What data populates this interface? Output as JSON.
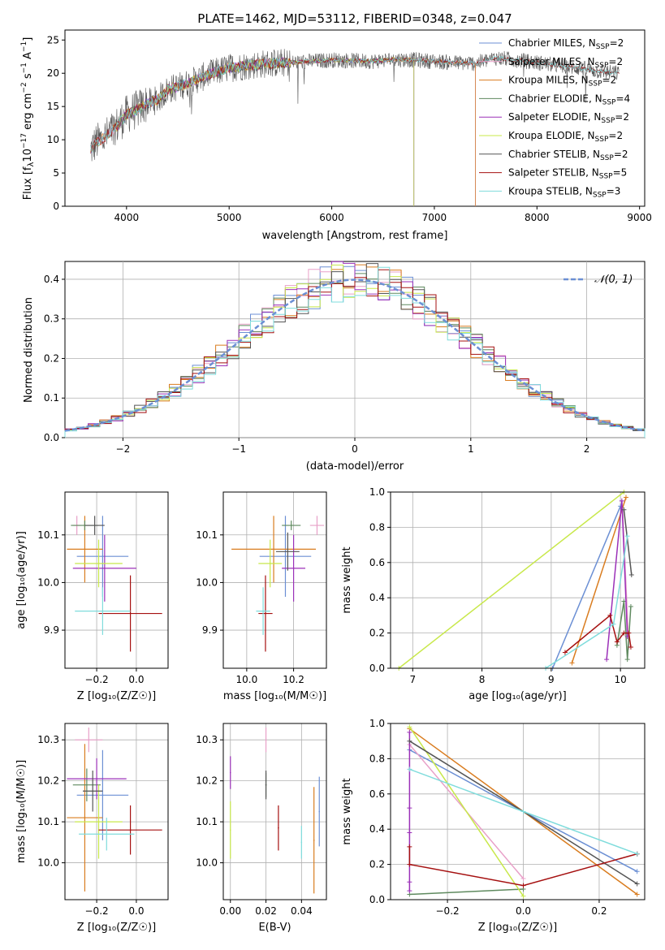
{
  "figure": {
    "title": "PLATE=1462, MJD=53112, FIBERID=0348, z=0.047"
  },
  "colors": {
    "Chabrier MILES": "#6b8fd4",
    "Salpeter MILES": "#e8a0c8",
    "Kroupa MILES": "#d97c1f",
    "Chabrier ELODIE": "#5f8a5f",
    "Salpeter ELODIE": "#9b30b8",
    "Kroupa ELODIE": "#c8e84a",
    "Chabrier STELIB": "#555555",
    "Salpeter STELIB": "#a51010",
    "Kroupa STELIB": "#7fdcdc"
  },
  "chart_data": [
    {
      "type": "line",
      "id": "spectrum",
      "title": "PLATE=1462, MJD=53112, FIBERID=0348, z=0.047",
      "xlabel": "wavelength [Angstrom, rest frame]",
      "ylabel": "Flux [fλ10^-17 erg cm^-2 s^-1 A^-1]",
      "xlim": [
        3400,
        9050
      ],
      "ylim": [
        0,
        26.5
      ],
      "xticks": [
        4000,
        5000,
        6000,
        7000,
        8000,
        9000
      ],
      "yticks": [
        0,
        5,
        10,
        15,
        20,
        25
      ],
      "legend": "upper-right",
      "legend_entries": [
        "Chabrier MILES, N_SSP=2",
        "Salpeter MILES, N_SSP=2",
        "Kroupa MILES, N_SSP=2",
        "Chabrier ELODIE, N_SSP=4",
        "Salpeter ELODIE, N_SSP=2",
        "Kroupa ELODIE, N_SSP=2",
        "Chabrier STELIB, N_SSP=2",
        "Salpeter STELIB, N_SSP=5",
        "Kroupa STELIB, N_SSP=3"
      ],
      "continuum": {
        "x": [
          3650,
          3700,
          3800,
          3900,
          4000,
          4100,
          4200,
          4300,
          4400,
          4600,
          4800,
          5000,
          5200,
          5400,
          5600,
          5800,
          6000,
          6200,
          6400,
          6600,
          6800,
          7000,
          7200,
          7400,
          7600,
          7800,
          8000,
          8200,
          8400,
          8600,
          8800
        ],
        "y": [
          8.5,
          9.5,
          10.5,
          12.0,
          13.8,
          14.5,
          15.5,
          16.0,
          17.5,
          18.5,
          19.8,
          20.8,
          21.2,
          21.5,
          21.6,
          21.8,
          22.0,
          21.9,
          21.8,
          22.1,
          22.0,
          21.8,
          21.6,
          21.5,
          22.3,
          22.0,
          21.6,
          21.2,
          20.8,
          20.3,
          20.0
        ]
      },
      "model_ranges": {
        "MILES": [
          3650,
          7400
        ],
        "ELODIE": [
          3900,
          6800
        ],
        "STELIB": [
          3650,
          8800
        ]
      }
    },
    {
      "type": "bar",
      "id": "residual-histogram",
      "xlabel": "(data-model)/error",
      "ylabel": "Normed distribution",
      "xlim": [
        -2.5,
        2.5
      ],
      "ylim": [
        0,
        0.445
      ],
      "xticks": [
        -2,
        -1,
        0,
        1,
        2
      ],
      "yticks": [
        0.0,
        0.1,
        0.2,
        0.3,
        0.4
      ],
      "legend": "upper-right",
      "reference_curve": "N(0,1)",
      "bin_width": 0.1,
      "bin_start": -2.5
    },
    {
      "type": "scatter",
      "id": "age-vs-Z",
      "xlabel": "Z [log10(Z/Z⊙)]",
      "ylabel": "age [log10(age/yr)]",
      "xlim": [
        -0.36,
        0.16
      ],
      "ylim": [
        9.82,
        10.19
      ],
      "xticks": [
        -0.2,
        0.0
      ],
      "yticks": [
        9.9,
        10.0,
        10.1
      ],
      "points": [
        {
          "model": "Chabrier MILES",
          "x": -0.17,
          "xerr": 0.13,
          "y": 10.055,
          "yerr": 0.085
        },
        {
          "model": "Salpeter MILES",
          "x": -0.3,
          "xerr": 0.02,
          "y": 10.12,
          "yerr": 0.02
        },
        {
          "model": "Kroupa MILES",
          "x": -0.26,
          "xerr": 0.09,
          "y": 10.07,
          "yerr": 0.07
        },
        {
          "model": "Chabrier ELODIE",
          "x": -0.26,
          "xerr": 0.07,
          "y": 10.12,
          "yerr": 0.01
        },
        {
          "model": "Salpeter ELODIE",
          "x": -0.16,
          "xerr": 0.16,
          "y": 10.03,
          "yerr": 0.07
        },
        {
          "model": "Kroupa ELODIE",
          "x": -0.19,
          "xerr": 0.12,
          "y": 10.04,
          "yerr": 0.05
        },
        {
          "model": "Chabrier STELIB",
          "x": -0.21,
          "xerr": 0.05,
          "y": 10.12,
          "yerr": 0.02
        },
        {
          "model": "Salpeter STELIB",
          "x": -0.03,
          "xerr": 0.16,
          "y": 9.935,
          "yerr": 0.08
        },
        {
          "model": "Kroupa STELIB",
          "x": -0.17,
          "xerr": 0.14,
          "y": 9.94,
          "yerr": 0.05
        }
      ]
    },
    {
      "type": "scatter",
      "id": "age-vs-mass",
      "xlabel": "mass [log10(M/M⊙)]",
      "ylabel": "",
      "xlim": [
        9.9,
        10.34
      ],
      "ylim": [
        9.82,
        10.19
      ],
      "xticks": [
        10.0,
        10.2
      ],
      "yticks": [
        9.9,
        10.0,
        10.1
      ],
      "points": [
        {
          "model": "Chabrier MILES",
          "x": 10.165,
          "xerr": 0.11,
          "y": 10.055,
          "yerr": 0.085
        },
        {
          "model": "Salpeter MILES",
          "x": 10.3,
          "xerr": 0.03,
          "y": 10.12,
          "yerr": 0.02
        },
        {
          "model": "Kroupa MILES",
          "x": 10.115,
          "xerr": 0.18,
          "y": 10.07,
          "yerr": 0.07
        },
        {
          "model": "Chabrier ELODIE",
          "x": 10.19,
          "xerr": 0.04,
          "y": 10.12,
          "yerr": 0.01
        },
        {
          "model": "Salpeter ELODIE",
          "x": 10.2,
          "xerr": 0.05,
          "y": 10.03,
          "yerr": 0.07
        },
        {
          "model": "Kroupa ELODIE",
          "x": 10.1,
          "xerr": 0.05,
          "y": 10.04,
          "yerr": 0.05
        },
        {
          "model": "Chabrier STELIB",
          "x": 10.175,
          "xerr": 0.05,
          "y": 10.065,
          "yerr": 0.04
        },
        {
          "model": "Salpeter STELIB",
          "x": 10.08,
          "xerr": 0.03,
          "y": 9.935,
          "yerr": 0.08
        },
        {
          "model": "Kroupa STELIB",
          "x": 10.07,
          "xerr": 0.03,
          "y": 9.94,
          "yerr": 0.05
        }
      ]
    },
    {
      "type": "line",
      "id": "mass-weight-vs-age",
      "xlabel": "age [log10(age/yr)]",
      "ylabel": "mass weight",
      "xlim": [
        6.68,
        10.35
      ],
      "ylim": [
        0,
        1.0
      ],
      "xticks": [
        7,
        8,
        9,
        10
      ],
      "yticks": [
        0.0,
        0.2,
        0.4,
        0.6,
        0.8,
        1.0
      ],
      "series": [
        {
          "model": "Chabrier MILES",
          "x": [
            9.02,
            10.0
          ],
          "y": [
            0.0,
            0.92
          ]
        },
        {
          "model": "Salpeter MILES",
          "x": [
            10.03,
            10.12
          ],
          "y": [
            0.9,
            0.12
          ]
        },
        {
          "model": "Kroupa MILES",
          "x": [
            9.3,
            10.08
          ],
          "y": [
            0.03,
            0.97
          ]
        },
        {
          "model": "Chabrier ELODIE",
          "x": [
            9.95,
            10.05,
            10.1,
            10.15
          ],
          "y": [
            0.13,
            0.38,
            0.05,
            0.35
          ]
        },
        {
          "model": "Salpeter ELODIE",
          "x": [
            9.8,
            10.02,
            10.1
          ],
          "y": [
            0.05,
            0.95,
            0.18
          ]
        },
        {
          "model": "Kroupa ELODIE",
          "x": [
            6.8,
            10.05
          ],
          "y": [
            0.0,
            1.0
          ]
        },
        {
          "model": "Chabrier STELIB",
          "x": [
            10.05,
            10.16
          ],
          "y": [
            0.9,
            0.53
          ]
        },
        {
          "model": "Salpeter STELIB",
          "x": [
            9.2,
            9.85,
            9.95,
            10.05,
            10.12,
            10.15
          ],
          "y": [
            0.09,
            0.3,
            0.15,
            0.2,
            0.2,
            0.12
          ]
        },
        {
          "model": "Kroupa STELIB",
          "x": [
            8.92,
            9.9,
            10.1
          ],
          "y": [
            0.0,
            0.25,
            0.75
          ]
        }
      ]
    },
    {
      "type": "scatter",
      "id": "mass-vs-Z",
      "xlabel": "Z [log10(Z/Z⊙)]",
      "ylabel": "mass [log10(M/M⊙)]",
      "xlim": [
        -0.36,
        0.16
      ],
      "ylim": [
        9.91,
        10.34
      ],
      "xticks": [
        -0.2,
        0.0
      ],
      "yticks": [
        10.0,
        10.1,
        10.2,
        10.3
      ],
      "points": [
        {
          "model": "Chabrier MILES",
          "x": -0.17,
          "xerr": 0.13,
          "y": 10.165,
          "yerr": 0.11
        },
        {
          "model": "Salpeter MILES",
          "x": -0.24,
          "xerr": 0.07,
          "y": 10.3,
          "yerr": 0.03
        },
        {
          "model": "Kroupa MILES",
          "x": -0.26,
          "xerr": 0.09,
          "y": 10.11,
          "yerr": 0.18
        },
        {
          "model": "Chabrier ELODIE",
          "x": -0.25,
          "xerr": 0.07,
          "y": 10.19,
          "yerr": 0.04
        },
        {
          "model": "Salpeter ELODIE",
          "x": -0.2,
          "xerr": 0.15,
          "y": 10.205,
          "yerr": 0.05
        },
        {
          "model": "Kroupa ELODIE",
          "x": -0.19,
          "xerr": 0.12,
          "y": 10.1,
          "yerr": 0.09
        },
        {
          "model": "Chabrier STELIB",
          "x": -0.22,
          "xerr": 0.05,
          "y": 10.175,
          "yerr": 0.05
        },
        {
          "model": "Salpeter STELIB",
          "x": -0.03,
          "xerr": 0.16,
          "y": 10.08,
          "yerr": 0.06
        },
        {
          "model": "Kroupa STELIB",
          "x": -0.15,
          "xerr": 0.14,
          "y": 10.07,
          "yerr": 0.04
        }
      ]
    },
    {
      "type": "scatter",
      "id": "mass-vs-ebv",
      "xlabel": "E(B-V)",
      "ylabel": "",
      "xlim": [
        -0.004,
        0.054
      ],
      "ylim": [
        9.91,
        10.34
      ],
      "xticks": [
        0.0,
        0.02,
        0.04
      ],
      "yticks": [
        10.0,
        10.1,
        10.2,
        10.3
      ],
      "points": [
        {
          "model": "Chabrier MILES",
          "x": 0.05,
          "y": 10.125,
          "yerr": 0.085
        },
        {
          "model": "Salpeter MILES",
          "x": 0.02,
          "y": 10.3,
          "yerr": 0.03
        },
        {
          "model": "Kroupa MILES",
          "x": 0.047,
          "y": 10.055,
          "yerr": 0.13
        },
        {
          "model": "Chabrier ELODIE",
          "x": 0.02,
          "y": 10.19,
          "yerr": 0.03
        },
        {
          "model": "Salpeter ELODIE",
          "x": 0.0,
          "y": 10.22,
          "yerr": 0.04
        },
        {
          "model": "Kroupa ELODIE",
          "x": 0.0,
          "y": 10.08,
          "yerr": 0.07
        },
        {
          "model": "Chabrier STELIB",
          "x": 0.02,
          "y": 10.19,
          "yerr": 0.035
        },
        {
          "model": "Salpeter STELIB",
          "x": 0.027,
          "y": 10.085,
          "yerr": 0.055
        },
        {
          "model": "Kroupa STELIB",
          "x": 0.04,
          "y": 10.05,
          "yerr": 0.04
        }
      ]
    },
    {
      "type": "line",
      "id": "mass-weight-vs-Z",
      "xlabel": "Z [log10(Z/Z⊙)]",
      "ylabel": "mass weight",
      "xlim": [
        -0.35,
        0.32
      ],
      "ylim": [
        0,
        1.0
      ],
      "xticks": [
        -0.2,
        0.0,
        0.2
      ],
      "yticks": [
        0.0,
        0.2,
        0.4,
        0.6,
        0.8,
        1.0
      ],
      "series": [
        {
          "model": "Chabrier MILES",
          "x": [
            -0.3,
            0.0,
            0.3
          ],
          "y": [
            0.85,
            0.5,
            0.16
          ]
        },
        {
          "model": "Salpeter MILES",
          "x": [
            -0.3,
            0.0
          ],
          "y": [
            0.88,
            0.12
          ]
        },
        {
          "model": "Kroupa MILES",
          "x": [
            -0.3,
            0.0,
            0.3
          ],
          "y": [
            0.97,
            0.5,
            0.03
          ]
        },
        {
          "model": "Chabrier ELODIE",
          "x": [
            -0.3,
            0.0
          ],
          "y": [
            0.03,
            0.06
          ]
        },
        {
          "model": "Salpeter ELODIE",
          "x": [
            -0.3,
            -0.3,
            -0.3,
            -0.3,
            -0.3
          ],
          "y": [
            0.95,
            0.52,
            0.38,
            0.1,
            0.05
          ]
        },
        {
          "model": "Kroupa ELODIE",
          "x": [
            -0.3,
            0.0
          ],
          "y": [
            0.98,
            0.02
          ]
        },
        {
          "model": "Chabrier STELIB",
          "x": [
            -0.3,
            0.0,
            0.3
          ],
          "y": [
            0.9,
            0.5,
            0.09
          ]
        },
        {
          "model": "Salpeter STELIB",
          "x": [
            -0.3,
            -0.3,
            0.0,
            0.3,
            0.3
          ],
          "y": [
            0.3,
            0.2,
            0.08,
            0.26,
            0.26
          ]
        },
        {
          "model": "Kroupa STELIB",
          "x": [
            -0.3,
            0.0,
            0.3
          ],
          "y": [
            0.74,
            0.5,
            0.26
          ]
        }
      ]
    }
  ]
}
